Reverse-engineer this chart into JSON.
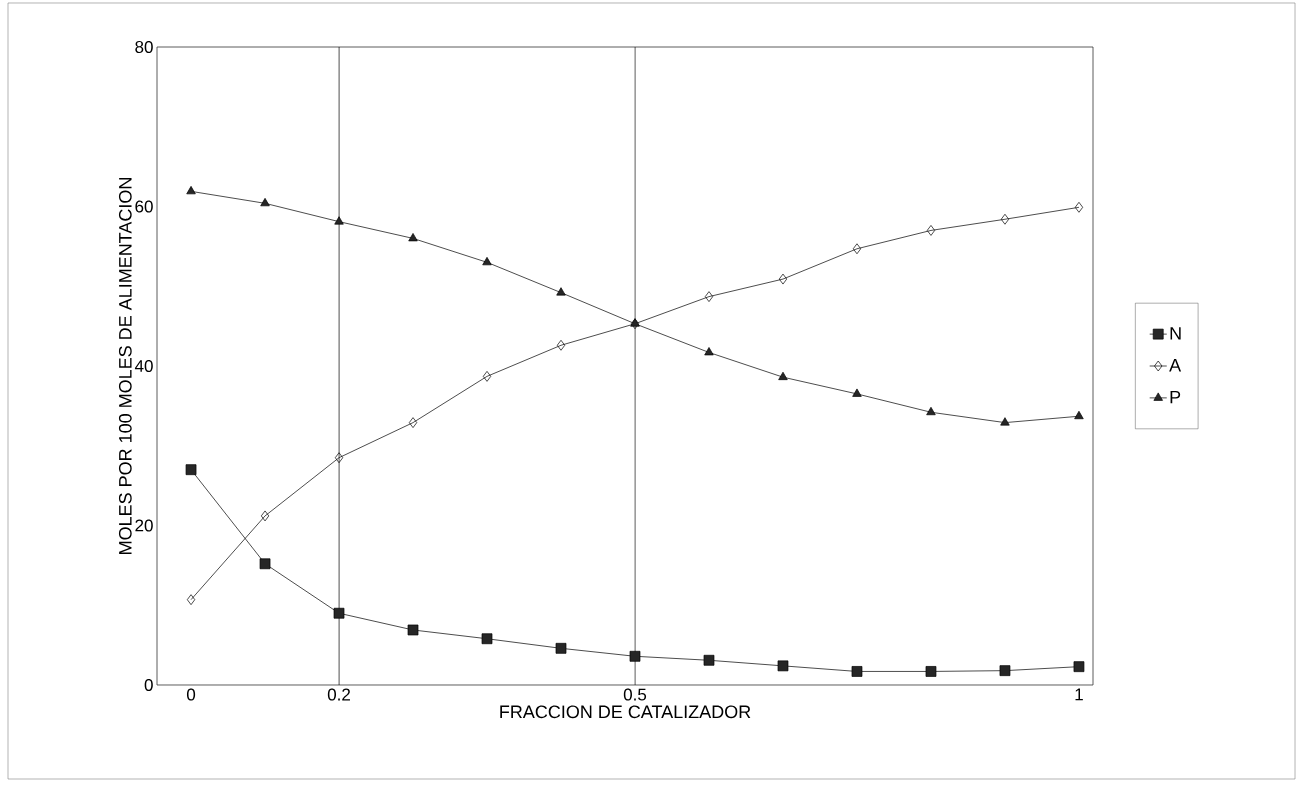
{
  "chart_data": {
    "type": "line",
    "xlabel": "FRACCION DE CATALIZADOR",
    "ylabel": "MOLES POR 100 MOLES DE ALIMENTACION",
    "categories": [
      "0",
      null,
      "0.2",
      null,
      null,
      null,
      "0.5",
      null,
      null,
      null,
      null,
      null,
      "1"
    ],
    "ylim": [
      0,
      80
    ],
    "yticks": [
      0,
      20,
      40,
      60,
      80
    ],
    "grid": false,
    "legend": "right",
    "ref_lines": [
      {
        "axis": "x",
        "value": "0.2",
        "color": "#000000"
      },
      {
        "axis": "x",
        "value": "0.5",
        "color": "#000000"
      }
    ],
    "series": [
      {
        "name": "N",
        "color": "#000000",
        "marker": "square",
        "values": [
          27.0,
          15.2,
          9.0,
          6.9,
          5.8,
          4.6,
          3.6,
          3.1,
          2.4,
          1.7,
          1.7,
          1.8,
          2.3
        ]
      },
      {
        "name": "A",
        "color": "#000000",
        "marker": "diamond",
        "values": [
          10.7,
          21.2,
          28.5,
          32.9,
          38.7,
          42.6,
          45.3,
          48.7,
          50.9,
          54.7,
          57.0,
          58.4,
          59.9
        ]
      },
      {
        "name": "P",
        "color": "#000000",
        "marker": "triangle",
        "values": [
          61.9,
          60.4,
          58.1,
          56.0,
          53.0,
          49.2,
          45.3,
          41.7,
          38.6,
          36.5,
          34.2,
          32.9,
          33.7
        ]
      }
    ]
  }
}
